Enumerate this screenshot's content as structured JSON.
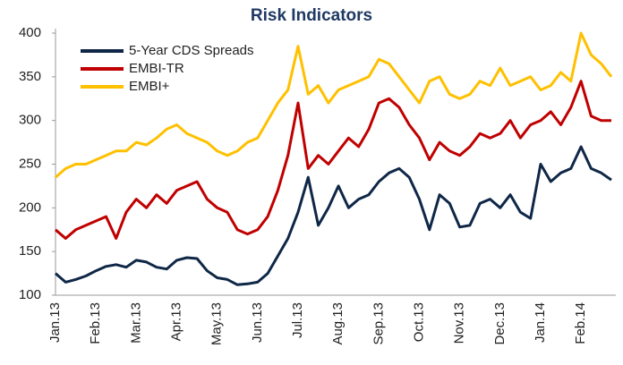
{
  "chart_data": {
    "type": "line",
    "title": "Risk Indicators",
    "categories": [
      "Jan.13",
      null,
      null,
      null,
      "Feb.13",
      null,
      null,
      null,
      "Mar.13",
      null,
      null,
      null,
      "Apr.13",
      null,
      null,
      null,
      "May.13",
      null,
      null,
      null,
      "Jun.13",
      null,
      null,
      null,
      "Jul.13",
      null,
      null,
      null,
      "Aug.13",
      null,
      null,
      null,
      "Sep.13",
      null,
      null,
      null,
      "Oct.13",
      null,
      null,
      null,
      "Nov.13",
      null,
      null,
      null,
      "Dec.13",
      null,
      null,
      null,
      "Jan.14",
      null,
      null,
      null,
      "Feb.14",
      null,
      null,
      null
    ],
    "series": [
      {
        "name": "5-Year CDS Spreads",
        "color": "#0f2747",
        "values": [
          125,
          115,
          118,
          122,
          128,
          133,
          135,
          132,
          140,
          138,
          132,
          130,
          140,
          143,
          142,
          128,
          120,
          118,
          112,
          113,
          115,
          125,
          145,
          165,
          195,
          235,
          180,
          200,
          225,
          200,
          210,
          215,
          230,
          240,
          245,
          235,
          210,
          175,
          215,
          205,
          178,
          180,
          205,
          210,
          200,
          215,
          195,
          188,
          250,
          230,
          240,
          245,
          270,
          245,
          240,
          232
        ]
      },
      {
        "name": "EMBI-TR",
        "color": "#c00000",
        "values": [
          175,
          165,
          175,
          180,
          185,
          190,
          165,
          195,
          210,
          200,
          215,
          205,
          220,
          225,
          230,
          210,
          200,
          195,
          175,
          170,
          175,
          190,
          220,
          260,
          320,
          245,
          260,
          250,
          265,
          280,
          270,
          290,
          320,
          325,
          315,
          295,
          280,
          255,
          275,
          265,
          260,
          270,
          285,
          280,
          285,
          300,
          280,
          295,
          300,
          310,
          295,
          315,
          345,
          305,
          300,
          300
        ]
      },
      {
        "name": "EMBI+",
        "color": "#ffc000",
        "values": [
          235,
          245,
          250,
          250,
          255,
          260,
          265,
          265,
          275,
          272,
          280,
          290,
          295,
          285,
          280,
          275,
          265,
          260,
          265,
          275,
          280,
          300,
          320,
          335,
          385,
          330,
          340,
          320,
          335,
          340,
          345,
          350,
          370,
          365,
          350,
          335,
          320,
          345,
          350,
          330,
          325,
          330,
          345,
          340,
          360,
          340,
          345,
          350,
          335,
          340,
          355,
          345,
          400,
          375,
          365,
          350
        ]
      }
    ],
    "ylim": [
      100,
      400
    ],
    "yticks": [
      100,
      150,
      200,
      250,
      300,
      350,
      400
    ],
    "legend": "upper-left"
  }
}
